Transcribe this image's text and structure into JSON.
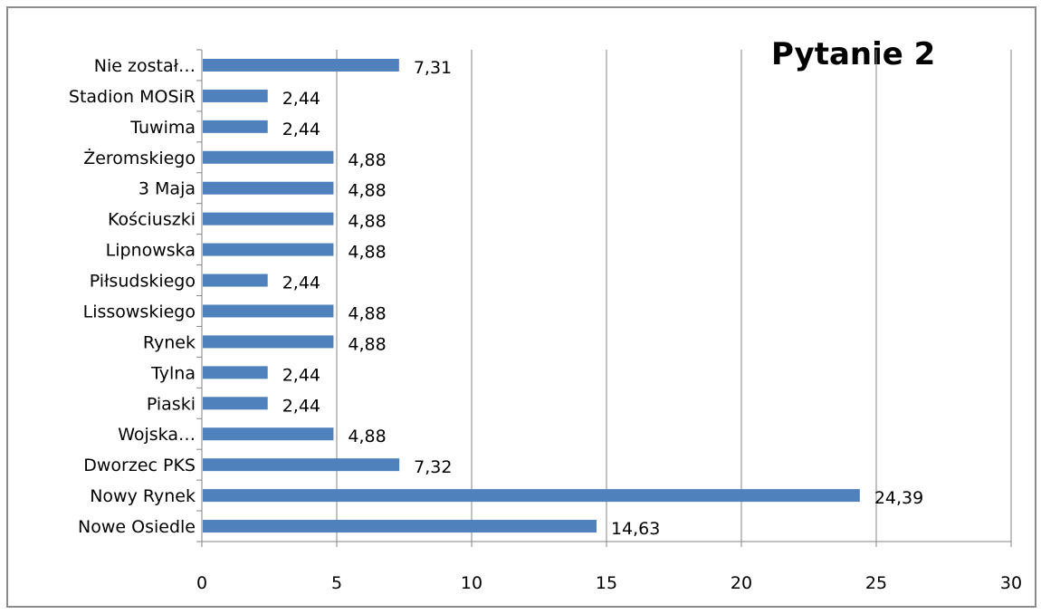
{
  "chart_data": {
    "type": "bar",
    "orientation": "horizontal",
    "title": "Pytanie 2",
    "categories": [
      "Nie został…",
      "Stadion MOSiR",
      "Tuwima",
      "Żeromskiego",
      "3 Maja",
      "Kościuszki",
      "Lipnowska",
      "Piłsudskiego",
      "Lissowskiego",
      "Rynek",
      "Tylna",
      "Piaski",
      "Wojska…",
      "Dworzec PKS",
      "Nowy Rynek",
      "Nowe Osiedle"
    ],
    "values": [
      7.31,
      2.44,
      2.44,
      4.88,
      4.88,
      4.88,
      4.88,
      2.44,
      4.88,
      4.88,
      2.44,
      2.44,
      4.88,
      7.32,
      24.39,
      14.63
    ],
    "value_labels": [
      "7,31",
      "2,44",
      "2,44",
      "4,88",
      "4,88",
      "4,88",
      "4,88",
      "2,44",
      "4,88",
      "4,88",
      "2,44",
      "2,44",
      "4,88",
      "7,32",
      "24,39",
      "14,63"
    ],
    "x_ticks": [
      "0",
      "5",
      "10",
      "15",
      "20",
      "25",
      "30"
    ],
    "xlim": [
      0,
      30
    ],
    "grid": true,
    "legend": false,
    "bar_color": "#4f81bd",
    "grid_color": "#868686"
  }
}
